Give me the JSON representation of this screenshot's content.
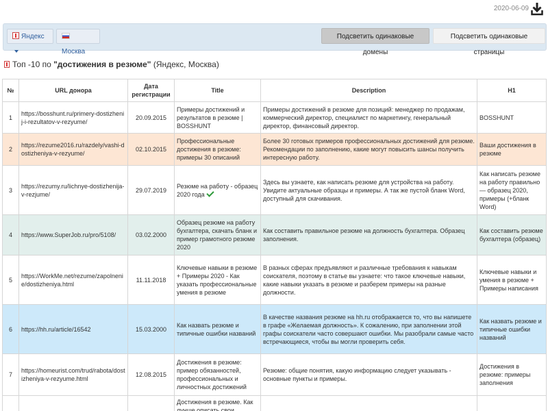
{
  "header": {
    "date": "2020-06-09",
    "download_icon": "download-icon"
  },
  "filters": {
    "engine": "Яндекс",
    "region": "Москва",
    "highlight_domains": "Подсветить одинаковые домены",
    "highlight_pages": "Подсветить одинаковые страницы"
  },
  "heading": {
    "prefix": "Топ -10 по ",
    "query": "\"достижения в резюме\"",
    "suffix": " (Яндекс, Москва)"
  },
  "table": {
    "columns": [
      "№",
      "URL донора",
      "Дата регистрации",
      "Title",
      "Description",
      "H1"
    ],
    "rows": [
      {
        "num": "1",
        "url": "https://bosshunt.ru/primery-dostizhenij-i-rezultatov-v-rezyume/",
        "date": "20.09.2015",
        "title": "Примеры достижений и результатов в резюме | BOSSHUNT",
        "description": "Примеры достижений в резюме для позиций: менеджер по продажам, коммерческий директор, специалист по маркетингу, генеральный директор, финансовый директор.",
        "h1": "BOSSHUNT"
      },
      {
        "num": "2",
        "url": "https://rezume2016.ru/razdely/vashi-dostizheniya-v-rezyume/",
        "date": "02.10.2015",
        "title": "Профессиональные достижения в резюме: примеры 30 описаний",
        "description": "Более 30 готовых примеров профессиональных достижений для резюме. Рекомендации по заполнению, какие могут повысить шансы получить интересную работу.",
        "h1": "Ваши достижения в резюме"
      },
      {
        "num": "3",
        "url": "https://rezumy.ru/lichnye-dostizhenija-v-rezjume/",
        "date": "29.07.2019",
        "title": "Резюме на работу - образец 2020 года",
        "description": "Здесь вы узнаете, как написать резюме для устройства на работу. Увидите актуальные образцы и примеры. А так же пустой бланк Word, доступный для скачивания.",
        "h1": "Как написать резюме на работу правильно — образец 2020, примеры (+бланк Word)"
      },
      {
        "num": "4",
        "url": "https://www.SuperJob.ru/pro/5108/",
        "date": "03.02.2000",
        "title": "Образец резюме на работу бухгалтера, скачать бланк и пример грамотного резюме 2020",
        "description": "Как составить правильное резюме на должность бухгалтера. Образец заполнения.",
        "h1": "Как составить резюме бухгалтера (образец)"
      },
      {
        "num": "5",
        "url": "https://WorkMe.net/rezume/zapolnenie/dostizheniya.html",
        "date": "11.11.2018",
        "title": "Ключевые навыки в резюме + Примеры 2020 - Как указать профессиональные умения в резюме",
        "description": "В разных сферах предъявляют и различные требования к навыкам соискателя, поэтому в статье вы узнаете: что такое ключевые навыки, какие навыки указать в резюме и разберем примеры на разные должности.",
        "h1": "Ключевые навыки и умения в резюме + Примеры написания"
      },
      {
        "num": "6",
        "url": "https://hh.ru/article/16542",
        "date": "15.03.2000",
        "title": "Как назвать резюме и типичные ошибки названий",
        "description": "В качестве названия резюме на hh.ru отображается то, что вы напишете в графе «Желаемая должность». К сожалению, при заполнении этой графы соискатели часто совершают ошибки. Мы разобрали самые часто встречающиеся, чтобы вы могли проверить себя.",
        "h1": "Как назвать резюме и типичные ошибки названий"
      },
      {
        "num": "7",
        "url": "https://homeurist.com/trud/rabota/dostizheniya-v-rezyume.html",
        "date": "12.08.2015",
        "title": "Достижения в резюме: пример обязанностей, профессиональных и личностных достижений",
        "description": "Резюме: общие понятия, какую информацию следует указывать - основные пункты и примеры.",
        "h1": "Достижения в резюме: примеры заполнения"
      },
      {
        "num": "",
        "url": "",
        "date": "",
        "title": "Достижения в резюме. Как лучше описать свои",
        "description": "",
        "h1": ""
      }
    ]
  }
}
